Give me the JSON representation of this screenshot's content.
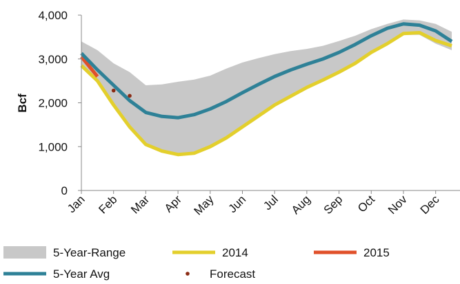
{
  "chart_data": {
    "type": "line",
    "y_label": "Bcf",
    "categories": [
      "Jan",
      null,
      "Feb",
      null,
      "Mar",
      null,
      "Apr",
      null,
      "May",
      null,
      "Jun",
      null,
      "Jul",
      null,
      "Aug",
      null,
      "Sep",
      null,
      "Oct",
      null,
      "Nov",
      null,
      "Dec",
      null
    ],
    "ylim": [
      0,
      4000
    ],
    "yticks": [
      0,
      {
        "value": 1000,
        "label": "1,000"
      },
      {
        "value": 2000,
        "label": "2,000"
      },
      {
        "value": 3000,
        "label": "3,000"
      },
      {
        "value": 4000,
        "label": "4,000"
      }
    ],
    "grid": false,
    "series": [
      {
        "name": "5-Year-Range",
        "color": "#c8c8c8",
        "kind": "range",
        "high": [
          3400,
          3200,
          2900,
          2700,
          2400,
          2420,
          2480,
          2530,
          2620,
          2780,
          2920,
          3020,
          3110,
          3180,
          3230,
          3300,
          3410,
          3530,
          3680,
          3800,
          3900,
          3880,
          3800,
          3620
        ],
        "low": [
          2800,
          2450,
          1900,
          1450,
          1050,
          900,
          820,
          850,
          1000,
          1200,
          1450,
          1700,
          1950,
          2150,
          2350,
          2520,
          2700,
          2900,
          3150,
          3350,
          3550,
          3550,
          3350,
          3200
        ]
      },
      {
        "name": "2014",
        "color": "#e3cf2c",
        "kind": "line",
        "values": [
          2850,
          2500,
          1950,
          1450,
          1050,
          900,
          820,
          850,
          1000,
          1200,
          1450,
          1700,
          1950,
          2150,
          2350,
          2520,
          2700,
          2900,
          3150,
          3350,
          3580,
          3600,
          3420,
          3300
        ]
      },
      {
        "name": "2015",
        "color": "#e0502a",
        "kind": "line",
        "values": [
          3050,
          2600,
          null,
          null,
          null,
          null,
          null,
          null,
          null,
          null,
          null,
          null,
          null,
          null,
          null,
          null,
          null,
          null,
          null,
          null,
          null,
          null,
          null,
          null
        ]
      },
      {
        "name": "5-Year Avg",
        "color": "#2e8197",
        "kind": "line",
        "values": [
          3130,
          2750,
          2400,
          2050,
          1780,
          1690,
          1660,
          1730,
          1860,
          2030,
          2230,
          2420,
          2600,
          2750,
          2880,
          3000,
          3150,
          3330,
          3530,
          3700,
          3800,
          3770,
          3640,
          3400
        ]
      },
      {
        "name": "Forecast",
        "color": "#8b2b14",
        "kind": "dots",
        "values": [
          null,
          null,
          2280,
          2160,
          null,
          null,
          null,
          null,
          null,
          null,
          null,
          null,
          null,
          null,
          null,
          null,
          null,
          null,
          null,
          null,
          null,
          null,
          null,
          null
        ]
      }
    ]
  }
}
